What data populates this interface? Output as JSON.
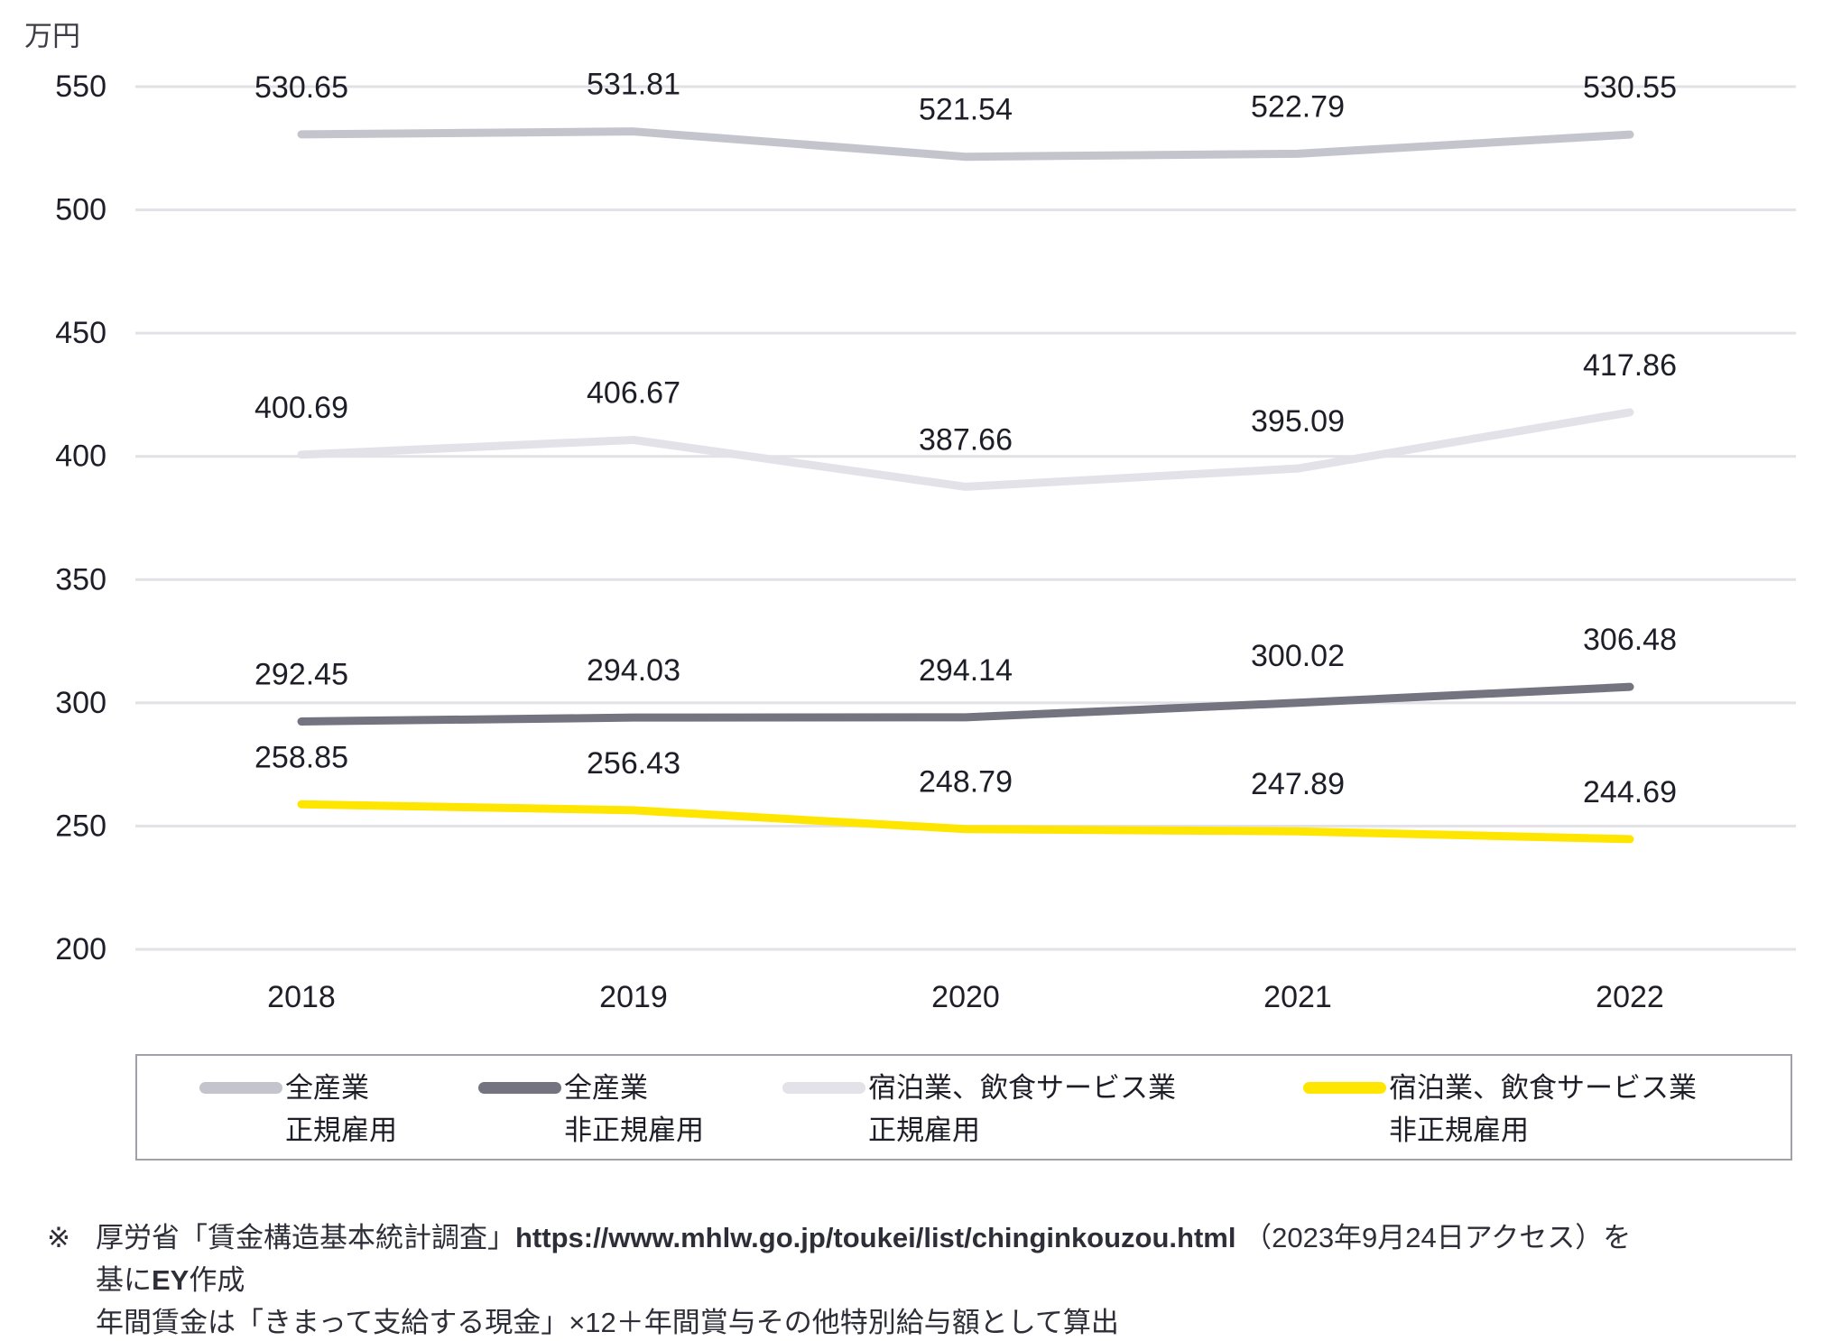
{
  "chart_data": {
    "type": "line",
    "title": "",
    "unit_label": "万円",
    "x": [
      "2018",
      "2019",
      "2020",
      "2021",
      "2022"
    ],
    "ylim": [
      200,
      550
    ],
    "yticks": [
      550,
      500,
      450,
      400,
      350,
      300,
      250,
      200
    ],
    "grid": true,
    "legend_position": "bottom",
    "colors": {
      "grid": "#e1e1e6",
      "tick_text": "#1e1e28",
      "label_text": "#1e1e28",
      "unit_text": "#3c3c46"
    },
    "series": [
      {
        "name": "全産業 正規雇用",
        "name_line1": "全産業",
        "name_line2": "正規雇用",
        "color": "#c4c4cd",
        "values": [
          530.65,
          531.81,
          521.54,
          522.79,
          530.55
        ]
      },
      {
        "name": "全産業 非正規雇用",
        "name_line1": "全産業",
        "name_line2": "非正規雇用",
        "color": "#747480",
        "values": [
          292.45,
          294.03,
          294.14,
          300.02,
          306.48
        ]
      },
      {
        "name": "宿泊業、飲食サービス業 正規雇用",
        "name_line1": "宿泊業、飲食サービス業",
        "name_line2": "正規雇用",
        "color": "#e2e2e8",
        "values": [
          400.69,
          406.67,
          387.66,
          395.09,
          417.86
        ]
      },
      {
        "name": "宿泊業、飲食サービス業 非正規雇用",
        "name_line1": "宿泊業、飲食サービス業",
        "name_line2": "非正規雇用",
        "color": "#ffe600",
        "values": [
          258.85,
          256.43,
          248.79,
          247.89,
          244.69
        ]
      }
    ]
  },
  "footnote": {
    "marker": "※",
    "line1_pre": "厚労省「賃金構造基本統計調査」",
    "line1_url": "https://www.mhlw.go.jp/toukei/list/chinginkouzou.html",
    "line1_post": " （2023年9月24日アクセス）を",
    "line2_pre": "基に",
    "line2_brand": "EY",
    "line2_post": "作成",
    "line3": "年間賃金は「きまって支給する現金」×12＋年間賞与その他特別給与額として算出"
  }
}
